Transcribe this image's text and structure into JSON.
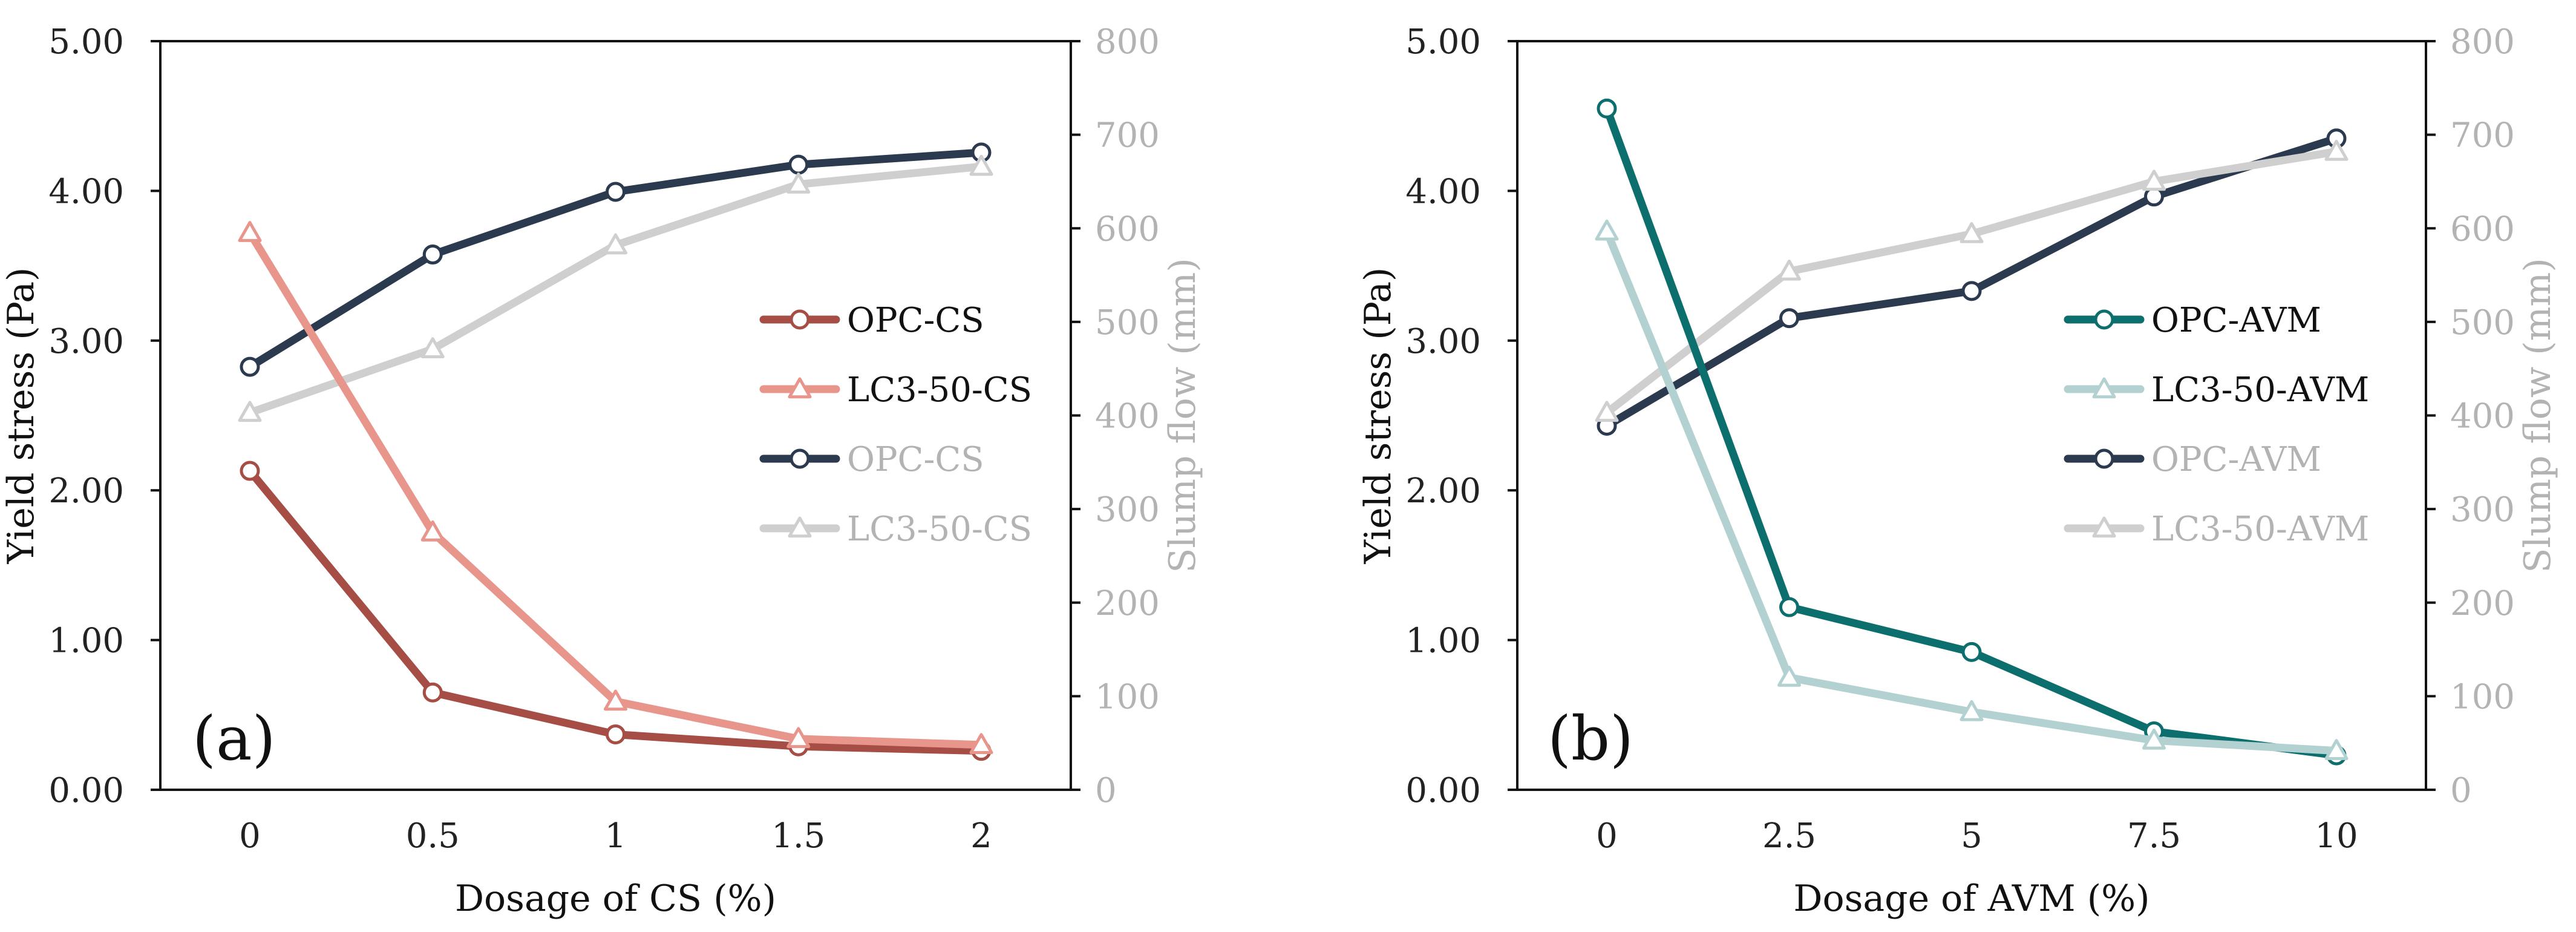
{
  "chart_data": [
    {
      "type": "line",
      "panel_label": "(a)",
      "xlabel": "Dosage of CS (%)",
      "ylabel_left": "Yield stress (Pa)",
      "ylabel_right": "Slump flow (mm)",
      "categories": [
        "0",
        "0.5",
        "1",
        "1.5",
        "2"
      ],
      "ylim_left": [
        0,
        5
      ],
      "yticks_left": [
        "0.00",
        "1.00",
        "2.00",
        "3.00",
        "4.00",
        "5.00"
      ],
      "ylim_right": [
        0,
        800
      ],
      "yticks_right": [
        "0",
        "100",
        "200",
        "300",
        "400",
        "500",
        "600",
        "700",
        "800"
      ],
      "legend_position": "center-right",
      "series": [
        {
          "name": "OPC-CS",
          "axis": "left",
          "marker": "circle",
          "color": "#a64d45",
          "values": [
            2.13,
            0.65,
            0.37,
            0.29,
            0.26
          ]
        },
        {
          "name": "LC3-50-CS",
          "axis": "left",
          "marker": "triangle",
          "color": "#e8958c",
          "values": [
            3.72,
            1.72,
            0.59,
            0.34,
            0.3
          ]
        },
        {
          "name": "OPC-CS",
          "axis": "right",
          "marker": "circle",
          "color": "#2b3a4e",
          "values": [
            452,
            572,
            639,
            668,
            681
          ]
        },
        {
          "name": "LC3-50-CS",
          "axis": "right",
          "marker": "triangle",
          "color": "#cfcfcf",
          "values": [
            403,
            471,
            582,
            647,
            666
          ]
        }
      ]
    },
    {
      "type": "line",
      "panel_label": "(b)",
      "xlabel": "Dosage of AVM (%)",
      "ylabel_left": "Yield stress (Pa)",
      "ylabel_right": "Slump flow (mm)",
      "categories": [
        "0",
        "2.5",
        "5",
        "7.5",
        "10"
      ],
      "ylim_left": [
        0,
        5
      ],
      "yticks_left": [
        "0.00",
        "1.00",
        "2.00",
        "3.00",
        "4.00",
        "5.00"
      ],
      "ylim_right": [
        0,
        800
      ],
      "yticks_right": [
        "0",
        "100",
        "200",
        "300",
        "400",
        "500",
        "600",
        "700",
        "800"
      ],
      "legend_position": "center-right",
      "series": [
        {
          "name": "OPC-AVM",
          "axis": "left",
          "marker": "circle",
          "color": "#0d6e6e",
          "values": [
            4.55,
            1.22,
            0.92,
            0.39,
            0.23
          ]
        },
        {
          "name": "LC3-50-AVM",
          "axis": "left",
          "marker": "triangle",
          "color": "#b3d1d1",
          "values": [
            3.73,
            0.75,
            0.52,
            0.33,
            0.26
          ]
        },
        {
          "name": "OPC-AVM",
          "axis": "right",
          "marker": "circle",
          "color": "#2b3a4e",
          "values": [
            389,
            504,
            533,
            634,
            696
          ]
        },
        {
          "name": "LC3-50-AVM",
          "axis": "right",
          "marker": "triangle",
          "color": "#cfcfcf",
          "values": [
            403,
            554,
            594,
            650,
            682
          ]
        }
      ]
    }
  ]
}
